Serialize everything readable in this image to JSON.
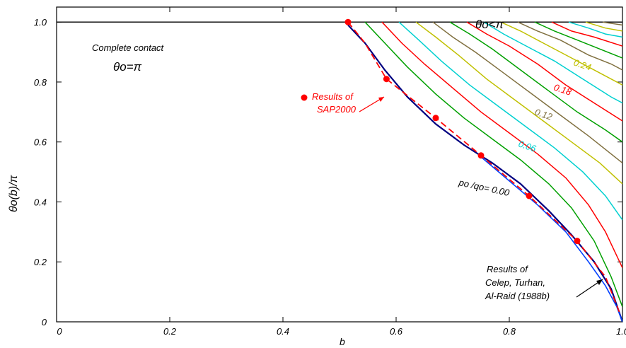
{
  "chart_data": {
    "type": "line",
    "xlabel": "b",
    "ylabel": "θo(b)/π",
    "xlim": [
      0,
      1.0
    ],
    "ylim": [
      0,
      1.05
    ],
    "x_ticks": [
      "0",
      "0.2",
      "0.4",
      "0.6",
      "0.8",
      "1.0"
    ],
    "y_ticks": [
      "0",
      "0.2",
      "0.4",
      "0.6",
      "0.8",
      "1.0"
    ],
    "grid": false,
    "region_labels": {
      "complete_contact": "Complete contact",
      "theta_pi": "θo=π",
      "theta_lt_pi": "θo<π"
    },
    "curve_labels": {
      "base": "po /qo= 0.00",
      "l006": "0.06",
      "l012": "0.12",
      "l018": "0.18",
      "l024": "0.24"
    },
    "annotations": {
      "sap_line1": "Results of",
      "sap_line2": "SAP2000",
      "celep_line1": "Results of",
      "celep_line2": "Celep, Turhan,",
      "celep_line3": "Al-Raid (1988b)"
    },
    "colors": {
      "base": "#000080",
      "celep": "#0040ff",
      "sap": "#ff0000",
      "family": [
        "#00a000",
        "#ff0000",
        "#00d0d0",
        "#c0c000",
        "#807040",
        "#00a000",
        "#ff0000",
        "#00d0d0",
        "#c0c000",
        "#807040",
        "#00a000",
        "#ff0000",
        "#00d0d0",
        "#c0c000",
        "#807040",
        "#00a000"
      ]
    },
    "series": [
      {
        "x": [
          0.515,
          0.545,
          0.58,
          0.62,
          0.67,
          0.72,
          0.77,
          0.82,
          0.87,
          0.91,
          0.95,
          0.98,
          1.0
        ],
        "y": [
          0.99,
          0.93,
          0.84,
          0.75,
          0.66,
          0.59,
          0.53,
          0.46,
          0.37,
          0.29,
          0.2,
          0.11,
          0.0
        ]
      },
      {
        "x": [
          0.545,
          0.58,
          0.62,
          0.67,
          0.72,
          0.77,
          0.82,
          0.87,
          0.91,
          0.95,
          0.98,
          1.0
        ],
        "y": [
          1.0,
          0.93,
          0.85,
          0.76,
          0.68,
          0.61,
          0.54,
          0.46,
          0.38,
          0.27,
          0.15,
          0.05
        ]
      },
      {
        "x": [
          0.575,
          0.61,
          0.65,
          0.7,
          0.75,
          0.8,
          0.85,
          0.9,
          0.94,
          0.97,
          1.0
        ],
        "y": [
          1.0,
          0.93,
          0.86,
          0.78,
          0.7,
          0.63,
          0.56,
          0.48,
          0.39,
          0.3,
          0.18
        ]
      },
      {
        "x": [
          0.605,
          0.64,
          0.68,
          0.73,
          0.78,
          0.83,
          0.88,
          0.93,
          0.97,
          1.0
        ],
        "y": [
          1.0,
          0.94,
          0.87,
          0.79,
          0.72,
          0.65,
          0.58,
          0.5,
          0.42,
          0.34
        ]
      },
      {
        "x": [
          0.635,
          0.67,
          0.71,
          0.76,
          0.81,
          0.86,
          0.91,
          0.96,
          1.0
        ],
        "y": [
          1.0,
          0.95,
          0.89,
          0.81,
          0.74,
          0.67,
          0.6,
          0.53,
          0.46
        ]
      },
      {
        "x": [
          0.665,
          0.7,
          0.74,
          0.79,
          0.84,
          0.89,
          0.94,
          0.98,
          1.0
        ],
        "y": [
          1.0,
          0.95,
          0.9,
          0.83,
          0.76,
          0.69,
          0.62,
          0.56,
          0.53
        ]
      },
      {
        "x": [
          0.695,
          0.73,
          0.77,
          0.82,
          0.87,
          0.92,
          0.97,
          1.0
        ],
        "y": [
          1.0,
          0.96,
          0.91,
          0.84,
          0.77,
          0.7,
          0.64,
          0.6
        ]
      },
      {
        "x": [
          0.725,
          0.76,
          0.8,
          0.85,
          0.9,
          0.95,
          1.0
        ],
        "y": [
          1.0,
          0.96,
          0.92,
          0.86,
          0.79,
          0.73,
          0.67
        ]
      },
      {
        "x": [
          0.755,
          0.79,
          0.83,
          0.88,
          0.93,
          0.98,
          1.0
        ],
        "y": [
          1.0,
          0.96,
          0.92,
          0.87,
          0.81,
          0.75,
          0.73
        ]
      },
      {
        "x": [
          0.785,
          0.82,
          0.86,
          0.91,
          0.96,
          1.0
        ],
        "y": [
          1.0,
          0.97,
          0.93,
          0.88,
          0.83,
          0.79
        ]
      },
      {
        "x": [
          0.815,
          0.85,
          0.89,
          0.94,
          0.98,
          1.0
        ],
        "y": [
          1.0,
          0.97,
          0.94,
          0.89,
          0.86,
          0.84
        ]
      },
      {
        "x": [
          0.845,
          0.88,
          0.92,
          0.96,
          1.0
        ],
        "y": [
          1.0,
          0.97,
          0.94,
          0.91,
          0.88
        ]
      },
      {
        "x": [
          0.875,
          0.91,
          0.95,
          1.0
        ],
        "y": [
          1.0,
          0.97,
          0.95,
          0.92
        ]
      },
      {
        "x": [
          0.905,
          0.94,
          0.97,
          1.0
        ],
        "y": [
          1.0,
          0.98,
          0.96,
          0.95
        ]
      },
      {
        "x": [
          0.935,
          0.97,
          1.0
        ],
        "y": [
          1.0,
          0.98,
          0.97
        ]
      },
      {
        "x": [
          0.965,
          1.0
        ],
        "y": [
          1.0,
          0.99
        ]
      }
    ],
    "celep_series": {
      "x": [
        0.75,
        0.8,
        0.85,
        0.9,
        0.94,
        0.97,
        0.99,
        1.0
      ],
      "y": [
        0.55,
        0.47,
        0.39,
        0.3,
        0.2,
        0.12,
        0.05,
        0.0
      ]
    },
    "sap_series": {
      "x": [
        0.515,
        0.545,
        0.583,
        0.67,
        0.75,
        0.835,
        0.92,
        0.97,
        0.995
      ],
      "y": [
        1.0,
        0.93,
        0.81,
        0.68,
        0.555,
        0.42,
        0.27,
        0.15,
        0.03
      ]
    },
    "sap_points": {
      "x": [
        0.515,
        0.583,
        0.67,
        0.75,
        0.835,
        0.92
      ],
      "y": [
        1.0,
        0.81,
        0.68,
        0.555,
        0.42,
        0.27
      ]
    }
  }
}
